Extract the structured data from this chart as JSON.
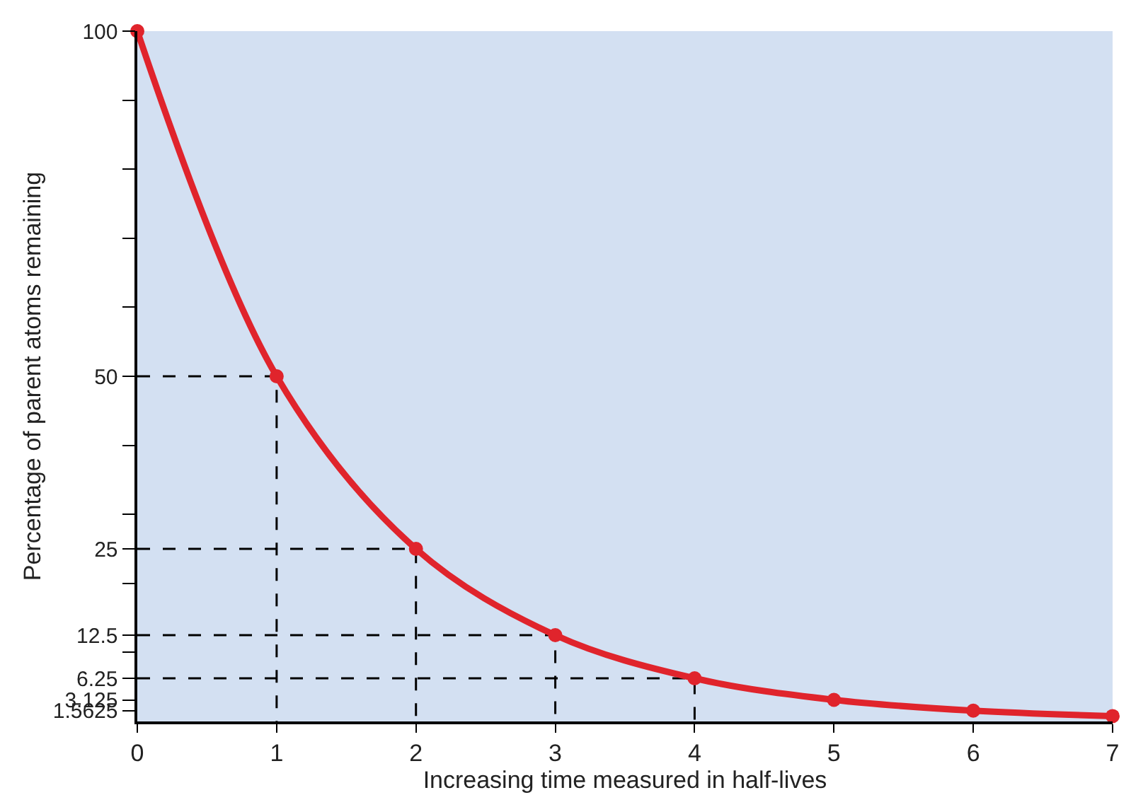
{
  "chart_data": {
    "type": "line",
    "xlabel": "Increasing time measured in half-lives",
    "ylabel": "Percentage of parent atoms remaining",
    "xlim": [
      0,
      7
    ],
    "xticks": [
      0,
      1,
      2,
      3,
      4,
      5,
      6,
      7
    ],
    "ylim": [
      0,
      100
    ],
    "yticks": [
      1.5625,
      3.125,
      6.25,
      12.5,
      25,
      50,
      100,
      {
        "value": 10,
        "label": null
      },
      {
        "value": 20,
        "label": null
      },
      {
        "value": 30,
        "label": null
      },
      {
        "value": 40,
        "label": null
      },
      {
        "value": 60,
        "label": null
      },
      {
        "value": 70,
        "label": null
      },
      {
        "value": 80,
        "label": null
      },
      {
        "value": 90,
        "label": null
      }
    ],
    "grid": false,
    "series": [
      {
        "color": "#000000",
        "line_style": "dashed",
        "marker": "none",
        "x": [
          0,
          1,
          1,
          null,
          0,
          2,
          2,
          null,
          0,
          3,
          3,
          null,
          0,
          4,
          4
        ],
        "values": [
          50,
          50,
          0,
          null,
          25,
          25,
          0,
          null,
          12.5,
          12.5,
          0,
          null,
          6.25,
          6.25,
          0
        ]
      },
      {
        "color": "#e0242c",
        "line_style": "solid",
        "marker": "circle",
        "x": [
          0,
          1,
          2,
          3,
          4,
          5,
          6,
          7
        ],
        "values": [
          100,
          50,
          25,
          12.5,
          6.25,
          3.125,
          1.5625,
          0.78125
        ]
      }
    ]
  }
}
